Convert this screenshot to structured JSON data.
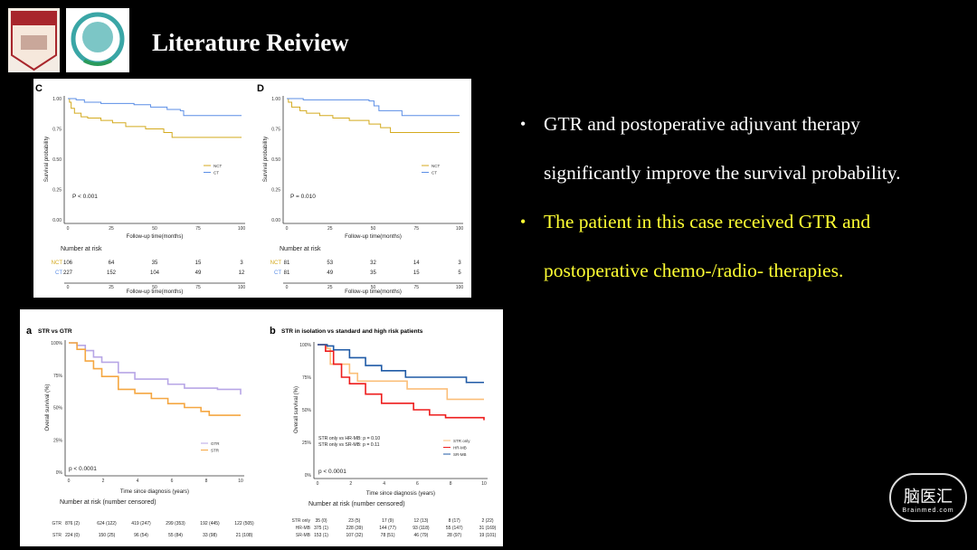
{
  "slide": {
    "title": "Literature Reiview",
    "logos": [
      {
        "name": "HUASHAN HOSPITAL FUDAN UNIVERSITY",
        "year": "1907"
      },
      {
        "name": "hospital-emblem",
        "year": "1937"
      }
    ],
    "brand": {
      "name": "脑医汇",
      "sub": "Brainmed.com"
    },
    "bullets": [
      {
        "text": "GTR and postoperative adjuvant therapy significantly improve the survival probability.",
        "color": "#ffffff"
      },
      {
        "text": "The patient in this case received GTR and postoperative chemo-/radio- therapies.",
        "color": "#ffff33"
      }
    ]
  },
  "chart_data": [
    {
      "type": "line",
      "panel": "C",
      "title": "",
      "xlabel": "Follow-up time(months)",
      "ylabel": "Survival probability",
      "xlim": [
        0,
        105
      ],
      "ylim": [
        0,
        1
      ],
      "xticks": [
        "0",
        "25",
        "50",
        "75",
        "100"
      ],
      "yticks": [
        "0.00",
        "0.25",
        "0.50",
        "0.75",
        "1.00"
      ],
      "pvalue": "P < 0.001",
      "legend": "right",
      "series": [
        {
          "name": "NCT",
          "color": "#d4aa1e",
          "points": [
            [
              0,
              1
            ],
            [
              1,
              0.97
            ],
            [
              2,
              0.92
            ],
            [
              4,
              0.88
            ],
            [
              8,
              0.85
            ],
            [
              12,
              0.84
            ],
            [
              20,
              0.82
            ],
            [
              27,
              0.8
            ],
            [
              35,
              0.77
            ],
            [
              47,
              0.75
            ],
            [
              58,
              0.72
            ],
            [
              63,
              0.68
            ],
            [
              105,
              0.68
            ]
          ]
        },
        {
          "name": "CT",
          "color": "#5b8ee6",
          "points": [
            [
              0,
              1
            ],
            [
              5,
              0.99
            ],
            [
              10,
              0.97
            ],
            [
              20,
              0.96
            ],
            [
              40,
              0.95
            ],
            [
              50,
              0.93
            ],
            [
              60,
              0.91
            ],
            [
              68,
              0.9
            ],
            [
              70,
              0.86
            ],
            [
              105,
              0.86
            ]
          ]
        }
      ],
      "risk": {
        "title": "Number at risk",
        "xlabel": "Follow-up time(months)",
        "rows": [
          {
            "name": "NCT",
            "values": [
              "106",
              "64",
              "35",
              "15",
              "3"
            ]
          },
          {
            "name": "CT",
            "values": [
              "227",
              "152",
              "104",
              "49",
              "12"
            ]
          }
        ]
      }
    },
    {
      "type": "line",
      "panel": "D",
      "title": "",
      "xlabel": "Follow-up time(months)",
      "ylabel": "Survival probability",
      "xlim": [
        0,
        105
      ],
      "ylim": [
        0,
        1
      ],
      "xticks": [
        "0",
        "25",
        "50",
        "75",
        "100"
      ],
      "yticks": [
        "0.00",
        "0.25",
        "0.50",
        "0.75",
        "1.00"
      ],
      "pvalue": "P = 0.010",
      "legend": "right",
      "series": [
        {
          "name": "NCT",
          "color": "#d4aa1e",
          "points": [
            [
              0,
              1
            ],
            [
              1,
              0.97
            ],
            [
              3,
              0.93
            ],
            [
              8,
              0.9
            ],
            [
              12,
              0.88
            ],
            [
              20,
              0.86
            ],
            [
              28,
              0.84
            ],
            [
              38,
              0.82
            ],
            [
              50,
              0.79
            ],
            [
              57,
              0.76
            ],
            [
              63,
              0.72
            ],
            [
              105,
              0.72
            ]
          ]
        },
        {
          "name": "CT",
          "color": "#5b8ee6",
          "points": [
            [
              0,
              1
            ],
            [
              10,
              0.99
            ],
            [
              50,
              0.98
            ],
            [
              53,
              0.94
            ],
            [
              56,
              0.9
            ],
            [
              70,
              0.86
            ],
            [
              105,
              0.86
            ]
          ]
        }
      ],
      "risk": {
        "title": "Number at risk",
        "xlabel": "Follow-up time(months)",
        "rows": [
          {
            "name": "NCT",
            "values": [
              "81",
              "53",
              "32",
              "14",
              "3"
            ]
          },
          {
            "name": "CT",
            "values": [
              "81",
              "49",
              "35",
              "15",
              "5"
            ]
          }
        ]
      }
    },
    {
      "type": "line",
      "panel": "a",
      "title": "STR vs GTR",
      "xlabel": "Time since diagnosis (years)",
      "ylabel": "Overall survival (%)",
      "xlim": [
        0,
        10.4
      ],
      "ylim": [
        0,
        100
      ],
      "xticks": [
        "0",
        "2",
        "4",
        "6",
        "8",
        "10"
      ],
      "yticks": [
        "0%",
        "25%",
        "50%",
        "75%",
        "100%"
      ],
      "pvalue": "p < 0.0001",
      "legend": "right",
      "series": [
        {
          "name": "GTR",
          "color": "#b7a6e6",
          "points": [
            [
              0,
              1
            ],
            [
              0.5,
              0.98
            ],
            [
              1,
              0.94
            ],
            [
              1.5,
              0.89
            ],
            [
              2,
              0.85
            ],
            [
              3,
              0.77
            ],
            [
              4,
              0.72
            ],
            [
              6,
              0.68
            ],
            [
              7,
              0.65
            ],
            [
              9,
              0.64
            ],
            [
              10.4,
              0.6
            ]
          ]
        },
        {
          "name": "STR",
          "color": "#f5a742",
          "points": [
            [
              0,
              1
            ],
            [
              0.5,
              0.95
            ],
            [
              1,
              0.86
            ],
            [
              1.5,
              0.8
            ],
            [
              2,
              0.74
            ],
            [
              3,
              0.64
            ],
            [
              4,
              0.61
            ],
            [
              5,
              0.57
            ],
            [
              6,
              0.53
            ],
            [
              7,
              0.5
            ],
            [
              8,
              0.47
            ],
            [
              8.5,
              0.44
            ],
            [
              10.4,
              0.44
            ]
          ]
        }
      ],
      "risk": {
        "title": "Number at risk (number censored)",
        "rows": [
          {
            "name": "GTR",
            "values": [
              "876 (2)",
              "624 (122)",
              "419 (247)",
              "299 (353)",
              "192 (445)",
              "122 (505)"
            ]
          },
          {
            "name": "STR",
            "values": [
              "224 (0)",
              "150 (25)",
              "96 (54)",
              "55 (84)",
              "33 (98)",
              "21 (108)"
            ]
          }
        ]
      }
    },
    {
      "type": "line",
      "panel": "b",
      "title": "STR in isolation vs standard and high risk patients",
      "xlabel": "Time since diagnosis (years)",
      "ylabel": "Overall survival (%)",
      "xlim": [
        0,
        10.4
      ],
      "ylim": [
        0,
        100
      ],
      "xticks": [
        "0",
        "2",
        "4",
        "6",
        "8",
        "10"
      ],
      "yticks": [
        "0%",
        "25%",
        "50%",
        "75%",
        "100%"
      ],
      "pvalue": "p < 0.0001",
      "legend": "right",
      "annotations": [
        "STR only vs HR-MB: p = 0.10",
        "STR only vs SR-MB: p = 0.11"
      ],
      "series": [
        {
          "name": "STR only",
          "color": "#fbbf7a",
          "points": [
            [
              0,
              1
            ],
            [
              0.6,
              0.97
            ],
            [
              0.8,
              0.85
            ],
            [
              1.8,
              0.85
            ],
            [
              2,
              0.78
            ],
            [
              2.5,
              0.72
            ],
            [
              5.5,
              0.72
            ],
            [
              5.6,
              0.66
            ],
            [
              8.1,
              0.66
            ],
            [
              8.1,
              0.58
            ],
            [
              10.4,
              0.58
            ]
          ]
        },
        {
          "name": "HR-MB",
          "color": "#ee1c1c",
          "points": [
            [
              0,
              1
            ],
            [
              0.5,
              0.95
            ],
            [
              1,
              0.85
            ],
            [
              1.5,
              0.75
            ],
            [
              2,
              0.7
            ],
            [
              3,
              0.62
            ],
            [
              4,
              0.55
            ],
            [
              6,
              0.5
            ],
            [
              7,
              0.46
            ],
            [
              8,
              0.44
            ],
            [
              10.4,
              0.42
            ]
          ]
        },
        {
          "name": "SR-MB",
          "color": "#1f5aa6",
          "points": [
            [
              0,
              1
            ],
            [
              0.6,
              0.99
            ],
            [
              1,
              0.96
            ],
            [
              2,
              0.9
            ],
            [
              3,
              0.84
            ],
            [
              4,
              0.8
            ],
            [
              5,
              0.8
            ],
            [
              5.5,
              0.75
            ],
            [
              9.3,
              0.75
            ],
            [
              9.3,
              0.71
            ],
            [
              10.4,
              0.71
            ]
          ]
        }
      ],
      "risk": {
        "title": "Number at risk (number censored)",
        "rows": [
          {
            "name": "STR only",
            "values": [
              "35 (0)",
              "23 (5)",
              "17 (9)",
              "12 (13)",
              "8 (17)",
              "2 (22)"
            ]
          },
          {
            "name": "HR-MB",
            "values": [
              "375 (1)",
              "228 (39)",
              "144 (77)",
              "93 (118)",
              "55 (147)",
              "31 (169)"
            ]
          },
          {
            "name": "SR-MB",
            "values": [
              "153 (1)",
              "107 (32)",
              "78 (51)",
              "46 (79)",
              "28 (97)",
              "19 (101)"
            ]
          }
        ]
      }
    }
  ]
}
